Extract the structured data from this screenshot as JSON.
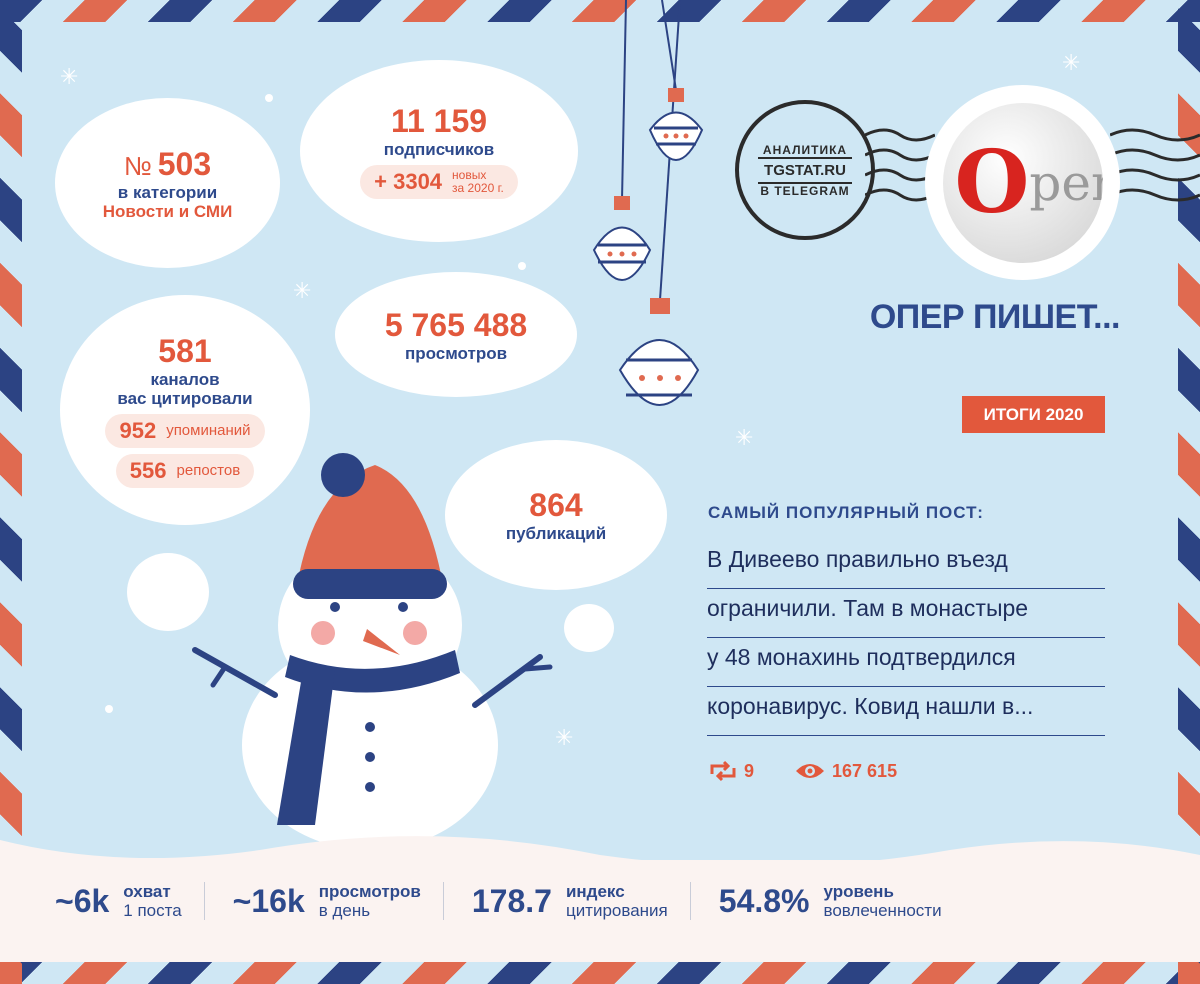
{
  "rank": {
    "number_prefix": "№",
    "number": "503",
    "line1": "в категории",
    "line2": "Новости и СМИ"
  },
  "subscribers": {
    "value": "11 159",
    "label": "подписчиков",
    "new_value": "+ 3304",
    "new_label1": "новых",
    "new_label2": "за 2020 г."
  },
  "views": {
    "value": "5 765 488",
    "label": "просмотров"
  },
  "citations": {
    "value": "581",
    "label1": "каналов",
    "label2": "вас цитировали",
    "mentions_value": "952",
    "mentions_label": "упоминаний",
    "reposts_value": "556",
    "reposts_label": "репостов"
  },
  "publications": {
    "value": "864",
    "label": "публикаций"
  },
  "stamp": {
    "top_text": "АНАЛИТИКА",
    "brand": "TGSTAT.RU",
    "bottom_text": "В TELEGRAM"
  },
  "avatar": {
    "letter": "O",
    "rest": "pen"
  },
  "channel": {
    "title": "ОПЕР ПИШЕТ...",
    "badge": "ИТОГИ 2020"
  },
  "top_post": {
    "heading": "САМЫЙ ПОПУЛЯРНЫЙ ПОСТ:",
    "lines": [
      "В Дивеево правильно въезд",
      "ограничили. Там в монастыре",
      "у 48 монахинь подтвердился",
      "коронавирус. Ковид нашли в..."
    ],
    "reposts": "9",
    "views": "167 615"
  },
  "metrics": [
    {
      "value": "~6k",
      "label1": "охват",
      "label2": "1 поста"
    },
    {
      "value": "~16k",
      "label1": "просмотров",
      "label2": "в день"
    },
    {
      "value": "178.7",
      "label1": "индекс",
      "label2": "цитирования"
    },
    {
      "value": "54.8%",
      "label1": "уровень",
      "label2": "вовлеченности"
    }
  ],
  "colors": {
    "accent": "#e2583c",
    "navy": "#2e4a8c",
    "background": "#cfe7f4"
  }
}
